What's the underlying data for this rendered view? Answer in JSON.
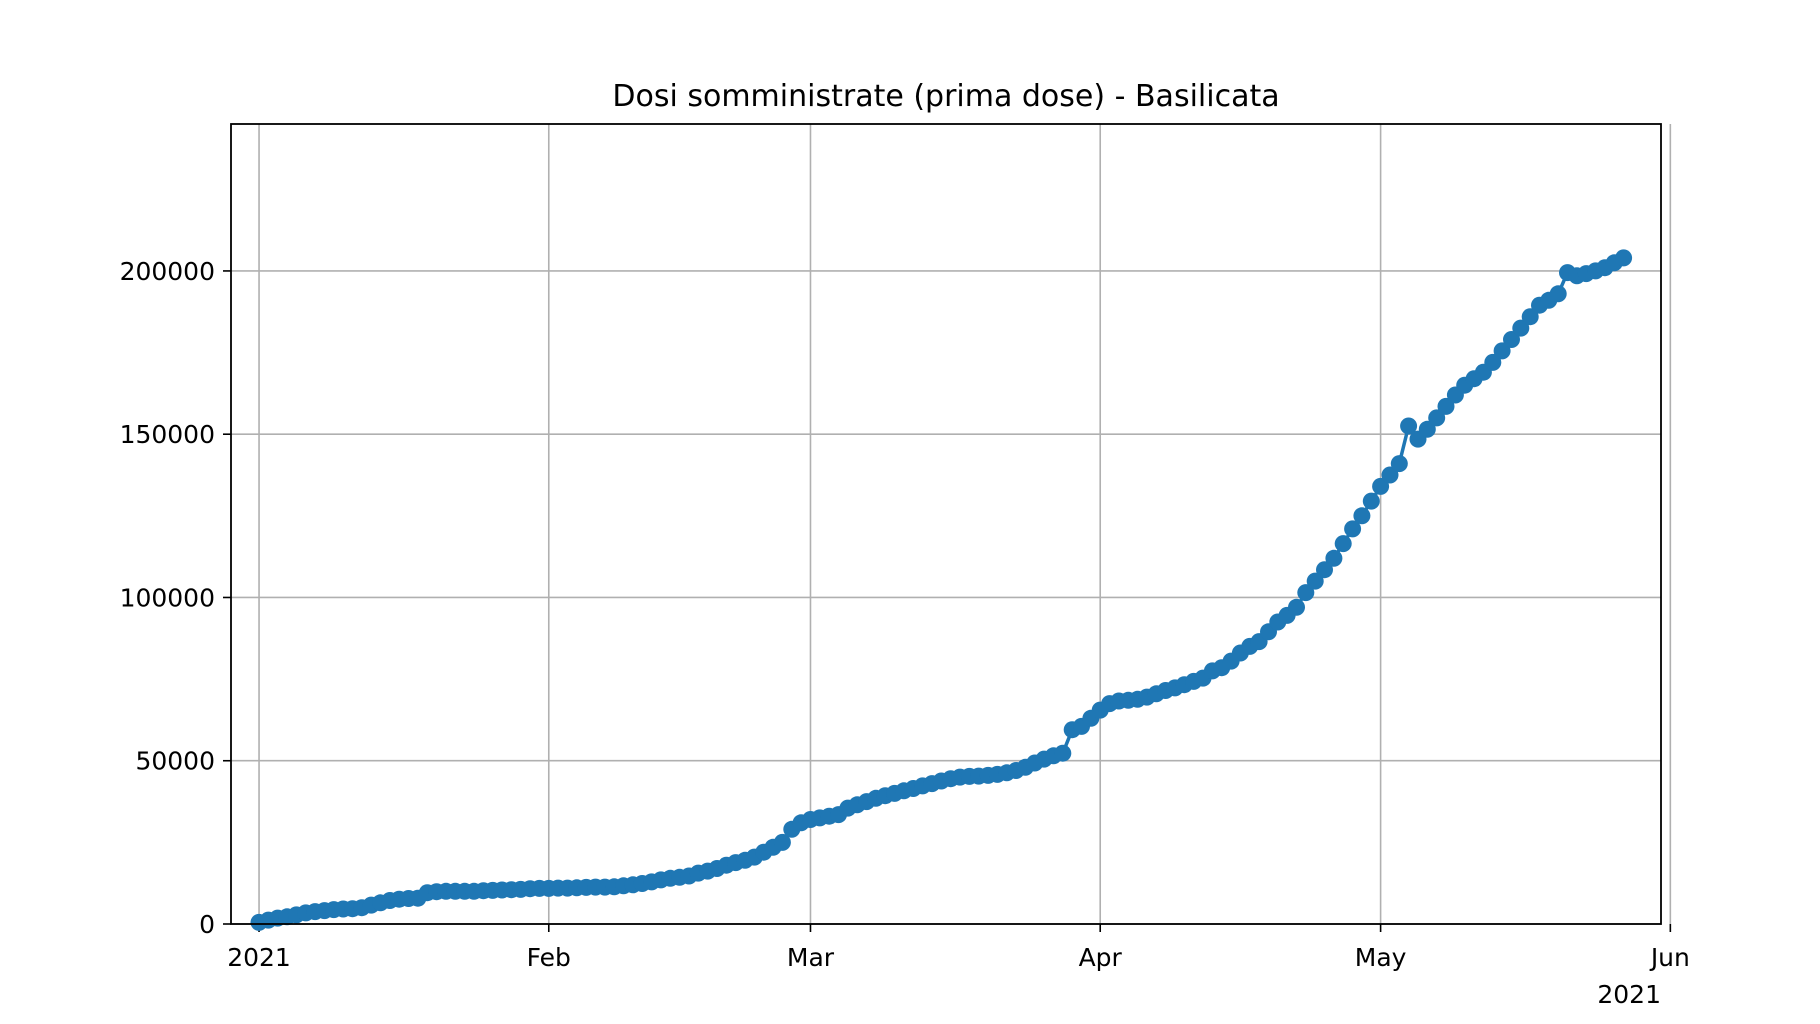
{
  "chart_data": {
    "type": "line",
    "title": "Dosi somministrate (prima dose) - Basilicata",
    "xlabel": "",
    "ylabel": "",
    "x_axis": {
      "type": "date",
      "range": [
        "2020-12-29",
        "2021-05-31"
      ],
      "ticks": [
        {
          "date": "2021-01-01",
          "label": "2021"
        },
        {
          "date": "2021-02-01",
          "label": "Feb"
        },
        {
          "date": "2021-03-01",
          "label": "Mar"
        },
        {
          "date": "2021-04-01",
          "label": "Apr"
        },
        {
          "date": "2021-05-01",
          "label": "May"
        },
        {
          "date": "2021-06-01",
          "label": "Jun"
        }
      ],
      "offset_label": "2021"
    },
    "y_axis": {
      "range": [
        0,
        245000
      ],
      "ticks": [
        0,
        50000,
        100000,
        150000,
        200000
      ]
    },
    "grid": true,
    "color": "#1f77b4",
    "series": [
      {
        "name": "",
        "marker": "circle",
        "points": [
          [
            "2021-01-01",
            500
          ],
          [
            "2021-01-02",
            1200
          ],
          [
            "2021-01-03",
            1800
          ],
          [
            "2021-01-04",
            2200
          ],
          [
            "2021-01-05",
            2800
          ],
          [
            "2021-01-06",
            3400
          ],
          [
            "2021-01-07",
            3800
          ],
          [
            "2021-01-08",
            4100
          ],
          [
            "2021-01-09",
            4400
          ],
          [
            "2021-01-10",
            4600
          ],
          [
            "2021-01-11",
            4700
          ],
          [
            "2021-01-12",
            5000
          ],
          [
            "2021-01-13",
            5800
          ],
          [
            "2021-01-14",
            6500
          ],
          [
            "2021-01-15",
            7200
          ],
          [
            "2021-01-16",
            7600
          ],
          [
            "2021-01-17",
            7800
          ],
          [
            "2021-01-18",
            7900
          ],
          [
            "2021-01-19",
            9600
          ],
          [
            "2021-01-20",
            9900
          ],
          [
            "2021-01-21",
            10000
          ],
          [
            "2021-01-22",
            10000
          ],
          [
            "2021-01-23",
            10000
          ],
          [
            "2021-01-24",
            10000
          ],
          [
            "2021-01-25",
            10200
          ],
          [
            "2021-01-26",
            10300
          ],
          [
            "2021-01-27",
            10400
          ],
          [
            "2021-01-28",
            10500
          ],
          [
            "2021-01-29",
            10600
          ],
          [
            "2021-01-30",
            10800
          ],
          [
            "2021-01-31",
            10900
          ],
          [
            "2021-02-01",
            10900
          ],
          [
            "2021-02-02",
            11000
          ],
          [
            "2021-02-03",
            11000
          ],
          [
            "2021-02-04",
            11100
          ],
          [
            "2021-02-05",
            11200
          ],
          [
            "2021-02-06",
            11300
          ],
          [
            "2021-02-07",
            11300
          ],
          [
            "2021-02-08",
            11400
          ],
          [
            "2021-02-09",
            11700
          ],
          [
            "2021-02-10",
            12000
          ],
          [
            "2021-02-11",
            12400
          ],
          [
            "2021-02-12",
            12900
          ],
          [
            "2021-02-13",
            13500
          ],
          [
            "2021-02-14",
            14000
          ],
          [
            "2021-02-15",
            14300
          ],
          [
            "2021-02-16",
            14700
          ],
          [
            "2021-02-17",
            15600
          ],
          [
            "2021-02-18",
            16200
          ],
          [
            "2021-02-19",
            17000
          ],
          [
            "2021-02-20",
            18000
          ],
          [
            "2021-02-21",
            18800
          ],
          [
            "2021-02-22",
            19500
          ],
          [
            "2021-02-23",
            20500
          ],
          [
            "2021-02-24",
            22000
          ],
          [
            "2021-02-25",
            23500
          ],
          [
            "2021-02-26",
            25000
          ],
          [
            "2021-02-27",
            29000
          ],
          [
            "2021-02-28",
            31000
          ],
          [
            "2021-03-01",
            32000
          ],
          [
            "2021-03-02",
            32500
          ],
          [
            "2021-03-03",
            33000
          ],
          [
            "2021-03-04",
            33500
          ],
          [
            "2021-03-05",
            35500
          ],
          [
            "2021-03-06",
            36500
          ],
          [
            "2021-03-07",
            37500
          ],
          [
            "2021-03-08",
            38500
          ],
          [
            "2021-03-09",
            39300
          ],
          [
            "2021-03-10",
            40000
          ],
          [
            "2021-03-11",
            40800
          ],
          [
            "2021-03-12",
            41500
          ],
          [
            "2021-03-13",
            42300
          ],
          [
            "2021-03-14",
            43000
          ],
          [
            "2021-03-15",
            43800
          ],
          [
            "2021-03-16",
            44500
          ],
          [
            "2021-03-17",
            45000
          ],
          [
            "2021-03-18",
            45200
          ],
          [
            "2021-03-19",
            45300
          ],
          [
            "2021-03-20",
            45500
          ],
          [
            "2021-03-21",
            45800
          ],
          [
            "2021-03-22",
            46300
          ],
          [
            "2021-03-23",
            47000
          ],
          [
            "2021-03-24",
            48000
          ],
          [
            "2021-03-25",
            49300
          ],
          [
            "2021-03-26",
            50500
          ],
          [
            "2021-03-27",
            51500
          ],
          [
            "2021-03-28",
            52300
          ],
          [
            "2021-03-29",
            59500
          ],
          [
            "2021-03-30",
            60500
          ],
          [
            "2021-03-31",
            63000
          ],
          [
            "2021-04-01",
            65500
          ],
          [
            "2021-04-02",
            67500
          ],
          [
            "2021-04-03",
            68300
          ],
          [
            "2021-04-04",
            68500
          ],
          [
            "2021-04-05",
            68800
          ],
          [
            "2021-04-06",
            69500
          ],
          [
            "2021-04-07",
            70500
          ],
          [
            "2021-04-08",
            71500
          ],
          [
            "2021-04-09",
            72300
          ],
          [
            "2021-04-10",
            73300
          ],
          [
            "2021-04-11",
            74300
          ],
          [
            "2021-04-12",
            75300
          ],
          [
            "2021-04-13",
            77500
          ],
          [
            "2021-04-14",
            78500
          ],
          [
            "2021-04-15",
            80500
          ],
          [
            "2021-04-16",
            83000
          ],
          [
            "2021-04-17",
            85000
          ],
          [
            "2021-04-18",
            86500
          ],
          [
            "2021-04-19",
            89500
          ],
          [
            "2021-04-20",
            92500
          ],
          [
            "2021-04-21",
            94500
          ],
          [
            "2021-04-22",
            97000
          ],
          [
            "2021-04-23",
            101500
          ],
          [
            "2021-04-24",
            105000
          ],
          [
            "2021-04-25",
            108500
          ],
          [
            "2021-04-26",
            112000
          ],
          [
            "2021-04-27",
            116500
          ],
          [
            "2021-04-28",
            121000
          ],
          [
            "2021-04-29",
            125000
          ],
          [
            "2021-04-30",
            129500
          ],
          [
            "2021-05-01",
            134000
          ],
          [
            "2021-05-02",
            137500
          ],
          [
            "2021-05-03",
            141000
          ],
          [
            "2021-05-04",
            152500
          ],
          [
            "2021-05-05",
            148500
          ],
          [
            "2021-05-06",
            151500
          ],
          [
            "2021-05-07",
            155000
          ],
          [
            "2021-05-08",
            158500
          ],
          [
            "2021-05-09",
            162000
          ],
          [
            "2021-05-10",
            165000
          ],
          [
            "2021-05-11",
            167000
          ],
          [
            "2021-05-12",
            169000
          ],
          [
            "2021-05-13",
            172000
          ],
          [
            "2021-05-14",
            175500
          ],
          [
            "2021-05-15",
            179000
          ],
          [
            "2021-05-16",
            182500
          ],
          [
            "2021-05-17",
            186000
          ],
          [
            "2021-05-18",
            189500
          ],
          [
            "2021-05-19",
            191000
          ],
          [
            "2021-05-20",
            193000
          ],
          [
            "2021-05-21",
            199500
          ],
          [
            "2021-05-22",
            198500
          ],
          [
            "2021-05-23",
            199200
          ],
          [
            "2021-05-24",
            200000
          ],
          [
            "2021-05-25",
            201000
          ],
          [
            "2021-05-26",
            202500
          ],
          [
            "2021-05-27",
            204000
          ]
        ]
      }
    ]
  }
}
